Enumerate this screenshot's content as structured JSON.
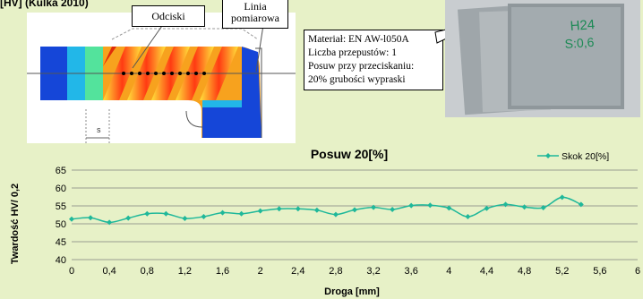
{
  "top": {
    "crop_label": "[HV] (Kulka 2010)",
    "callout_odciski": "Odciski",
    "callout_linia_1": "Linia",
    "callout_linia_2": "pomiarowa",
    "dimension_label": "s",
    "info_lines": [
      "Materiał: EN AW-l050A",
      "Liczba przepustów: 1",
      "Posuw przy przeciskaniu:",
      "20% grubości wypraski"
    ],
    "photo_text_1": "H24",
    "photo_text_2": "S:0,6"
  },
  "colors": {
    "background": "#e7f1c7",
    "series": "#1fb89a",
    "grid": "#808080"
  },
  "chart_data": {
    "type": "line",
    "title": "Posuw 20[%]",
    "xlabel": "Droga [mm]",
    "ylabel": "Twardość HV/ 0,2",
    "xlim": [
      0,
      6
    ],
    "ylim": [
      40,
      65
    ],
    "xticks": [
      "0",
      "0,4",
      "0,8",
      "1,2",
      "1,6",
      "2",
      "2,4",
      "2,8",
      "3,2",
      "3,6",
      "4",
      "4,4",
      "4,8",
      "5,2",
      "5,6",
      "6"
    ],
    "yticks": [
      "40",
      "45",
      "50",
      "55",
      "60",
      "65"
    ],
    "grid": "horizontal",
    "legend_position": "top-right",
    "series": [
      {
        "name": "Skok 20[%]",
        "x": [
          0,
          0.2,
          0.4,
          0.6,
          0.8,
          1.0,
          1.2,
          1.4,
          1.6,
          1.8,
          2.0,
          2.2,
          2.4,
          2.6,
          2.8,
          3.0,
          3.2,
          3.4,
          3.6,
          3.8,
          4.0,
          4.2,
          4.4,
          4.6,
          4.8,
          5.0,
          5.2,
          5.4
        ],
        "y": [
          51.3,
          51.7,
          50.4,
          51.6,
          52.8,
          52.8,
          51.5,
          52.0,
          53.1,
          52.8,
          53.6,
          54.2,
          54.2,
          53.8,
          52.6,
          53.9,
          54.6,
          54.0,
          55.1,
          55.2,
          54.4,
          52.0,
          54.3,
          55.4,
          54.7,
          54.5,
          57.4,
          55.4
        ]
      }
    ]
  }
}
